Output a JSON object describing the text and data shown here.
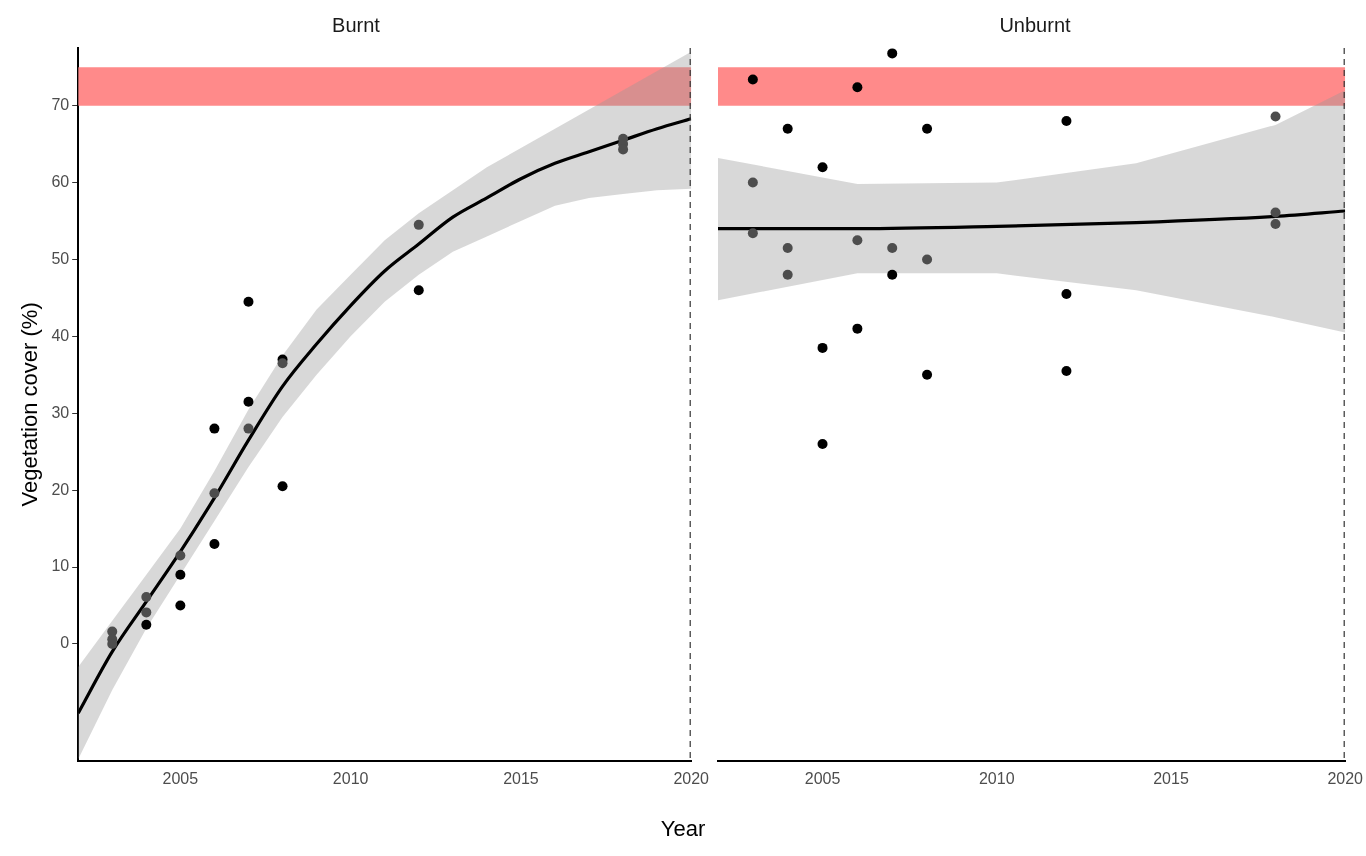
{
  "chart_data": [
    {
      "type": "scatter",
      "title": "Burnt",
      "xlabel": "Year",
      "ylabel": "Vegetation cover (%)",
      "xlim": [
        2002,
        2020
      ],
      "xticks": [
        2005,
        2010,
        2015,
        2020
      ],
      "ylim": [
        -15.2,
        77.5
      ],
      "yticks": [
        0,
        10,
        20,
        30,
        40,
        50,
        60,
        70
      ],
      "grid": false,
      "legend": false,
      "marker": "circle",
      "series": [
        {
          "type": "line",
          "marker": "none",
          "color": "#000000",
          "x": [
            2002,
            2003,
            2004,
            2005,
            2006,
            2007,
            2008,
            2009,
            2010,
            2011,
            2012,
            2013,
            2014,
            2015,
            2016,
            2017,
            2018,
            2019,
            2020
          ],
          "values": [
            -9,
            -1,
            5.5,
            12,
            19,
            26.5,
            33.5,
            39,
            44,
            48.5,
            52,
            55.5,
            58,
            60.5,
            62.5,
            64,
            65.5,
            67,
            68.3
          ],
          "lower": [
            -15,
            -6,
            2,
            9,
            16,
            23,
            29.5,
            35,
            40,
            44.5,
            48,
            51,
            53,
            55,
            57,
            58,
            58.5,
            59,
            59.2
          ],
          "upper": [
            -3,
            3,
            9,
            15,
            22.5,
            30.5,
            37.5,
            43.5,
            48,
            52.5,
            56,
            59,
            62,
            64.5,
            67,
            69.5,
            72,
            74.5,
            77
          ]
        },
        {
          "color": "#000000",
          "x": [
            2004,
            2005,
            2005,
            2006,
            2006,
            2007,
            2007,
            2008,
            2008,
            2012
          ],
          "values": [
            2.5,
            9,
            5,
            28,
            13,
            44.5,
            31.5,
            37,
            20.5,
            46
          ]
        },
        {
          "color": "#4d4d4d",
          "x": [
            2003,
            2003,
            2003,
            2004,
            2004,
            2005,
            2006,
            2007,
            2008,
            2012,
            2018,
            2018,
            2018
          ],
          "values": [
            1.6,
            0.6,
            0,
            6.1,
            4.1,
            11.5,
            19.6,
            28,
            36.5,
            54.5,
            65.7,
            65,
            64.3
          ]
        }
      ],
      "bands": [
        {
          "axis": "y",
          "from": 70,
          "to": 75,
          "color": "#ff8a8a"
        }
      ],
      "ref_lines": [
        {
          "axis": "x",
          "value": 2020,
          "line_style": "dashed",
          "color": "#333333"
        }
      ]
    },
    {
      "type": "scatter",
      "title": "Unburnt",
      "xlim": [
        2002,
        2020
      ],
      "xticks": [
        2005,
        2010,
        2015,
        2020
      ],
      "ylim": [
        -15.2,
        77.5
      ],
      "yticks": [
        0,
        10,
        20,
        30,
        40,
        50,
        60,
        70
      ],
      "tick_labels": "x",
      "grid": false,
      "legend": false,
      "marker": "circle",
      "series": [
        {
          "type": "line",
          "marker": "none",
          "color": "#000000",
          "x": [
            2002,
            2006,
            2010,
            2014,
            2018,
            2020
          ],
          "values": [
            54,
            54,
            54.3,
            54.8,
            55.6,
            56.3
          ],
          "lower": [
            44.7,
            48.2,
            48.2,
            46,
            42.5,
            40.5
          ],
          "upper": [
            63.2,
            59.8,
            60,
            62.5,
            67.5,
            72
          ]
        },
        {
          "color": "#000000",
          "x": [
            2003,
            2004,
            2005,
            2005,
            2005,
            2006,
            2006,
            2007,
            2007,
            2008,
            2008,
            2012,
            2012,
            2012
          ],
          "values": [
            73.4,
            67,
            62,
            38.5,
            26,
            72.4,
            41,
            76.8,
            48,
            67,
            35,
            68,
            45.5,
            35.5
          ]
        },
        {
          "color": "#4d4d4d",
          "x": [
            2003,
            2003,
            2004,
            2004,
            2006,
            2007,
            2008,
            2018,
            2018,
            2018
          ],
          "values": [
            60,
            53.4,
            51.5,
            48,
            52.5,
            51.5,
            50,
            68.6,
            56.1,
            54.6
          ]
        }
      ],
      "bands": [
        {
          "axis": "y",
          "from": 70,
          "to": 75,
          "color": "#ff8a8a"
        }
      ],
      "ref_lines": [
        {
          "axis": "x",
          "value": 2020,
          "line_style": "dashed",
          "color": "#333333"
        }
      ]
    }
  ]
}
